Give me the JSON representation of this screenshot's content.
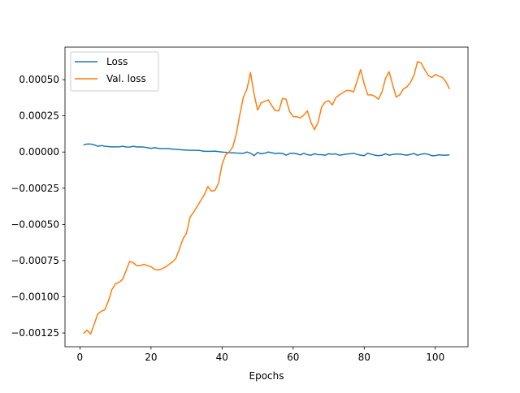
{
  "chart_data": {
    "type": "line",
    "title": "",
    "xlabel": "Epochs",
    "ylabel": "",
    "xlim": [
      -4.2,
      109.2
    ],
    "ylim": [
      -0.001345,
      0.000725
    ],
    "x_ticks": [
      0,
      20,
      40,
      60,
      80,
      100
    ],
    "x_tick_labels": [
      "0",
      "20",
      "40",
      "60",
      "80",
      "100"
    ],
    "y_ticks": [
      -0.00125,
      -0.001,
      -0.00075,
      -0.0005,
      -0.00025,
      0,
      0.00025,
      0.0005
    ],
    "y_tick_labels": [
      "−0.00125",
      "−0.00100",
      "−0.00075",
      "−0.00050",
      "−0.00025",
      "0.00000",
      "0.00025",
      "0.00050"
    ],
    "grid": false,
    "legend_position": "top-left",
    "x": [
      1,
      2,
      3,
      4,
      5,
      6,
      7,
      8,
      9,
      10,
      11,
      12,
      13,
      14,
      15,
      16,
      17,
      18,
      19,
      20,
      21,
      22,
      23,
      24,
      25,
      26,
      27,
      28,
      29,
      30,
      31,
      32,
      33,
      34,
      35,
      36,
      37,
      38,
      39,
      40,
      41,
      42,
      43,
      44,
      45,
      46,
      47,
      48,
      49,
      50,
      51,
      52,
      53,
      54,
      55,
      56,
      57,
      58,
      59,
      60,
      61,
      62,
      63,
      64,
      65,
      66,
      67,
      68,
      69,
      70,
      71,
      72,
      73,
      74,
      75,
      76,
      77,
      78,
      79,
      80,
      81,
      82,
      83,
      84,
      85,
      86,
      87,
      88,
      89,
      90,
      91,
      92,
      93,
      94,
      95,
      96,
      97,
      98,
      99,
      100,
      101,
      102,
      103,
      104
    ],
    "series": [
      {
        "name": "Loss",
        "color": "#1f77b4",
        "values": [
          5e-05,
          5.5e-05,
          5.5e-05,
          5e-05,
          4e-05,
          4.5e-05,
          4e-05,
          3.8e-05,
          3.6e-05,
          3.6e-05,
          3.6e-05,
          4e-05,
          3.5e-05,
          3.4e-05,
          4e-05,
          3.5e-05,
          3.6e-05,
          3.4e-05,
          3e-05,
          2.5e-05,
          3e-05,
          2.6e-05,
          2.4e-05,
          2.4e-05,
          2.4e-05,
          2e-05,
          1.9e-05,
          1.7e-05,
          1.5e-05,
          1.3e-05,
          1.2e-05,
          1.2e-05,
          1.2e-05,
          1e-05,
          5e-06,
          5e-06,
          5e-06,
          6e-06,
          3e-06,
          0.0,
          -2e-06,
          -4e-06,
          -5e-06,
          -7e-06,
          -8e-06,
          -9e-06,
          0.0,
          -8e-06,
          -2.5e-05,
          -3e-06,
          -1.2e-05,
          -8e-06,
          0.0,
          -5e-06,
          -1e-05,
          -8e-06,
          -9e-06,
          -2.2e-05,
          -1e-05,
          -8e-06,
          -1.2e-05,
          -2e-05,
          -9e-06,
          -1.8e-05,
          -2.2e-05,
          -1.2e-05,
          -1.8e-05,
          -1.8e-05,
          -2.2e-05,
          -1.2e-05,
          -1.5e-05,
          -1.3e-05,
          -2.2e-05,
          -1.8e-05,
          -1.4e-05,
          -1.2e-05,
          -9e-06,
          -1.6e-05,
          -2.2e-05,
          -2.5e-05,
          -8e-06,
          -1.5e-05,
          -2.2e-05,
          -2.5e-05,
          -2.2e-05,
          -1.2e-05,
          -2.2e-05,
          -1.7e-05,
          -1.4e-05,
          -1.4e-05,
          -1.8e-05,
          -2.2e-05,
          -1.6e-05,
          -1e-05,
          -2.2e-05,
          -1.5e-05,
          -1.1e-05,
          -1.6e-05,
          -2.5e-05,
          -2.5e-05,
          -1.9e-05,
          -2.2e-05,
          -2.2e-05,
          -2e-05
        ]
      },
      {
        "name": "Val. loss",
        "color": "#ff7f0e",
        "values": [
          -0.001255,
          -0.00123,
          -0.001258,
          -0.00119,
          -0.00112,
          -0.0011,
          -0.00109,
          -0.00103,
          -0.00095,
          -0.00091,
          -0.0009,
          -0.00088,
          -0.00082,
          -0.000755,
          -0.000765,
          -0.000785,
          -0.000785,
          -0.000775,
          -0.000785,
          -0.000792,
          -0.00081,
          -0.000815,
          -0.000808,
          -0.000795,
          -0.000778,
          -0.00076,
          -0.000735,
          -0.00067,
          -0.0006,
          -0.00056,
          -0.00045,
          -0.000415,
          -0.000375,
          -0.000335,
          -0.000295,
          -0.000238,
          -0.00027,
          -0.000265,
          -0.000215,
          -8.5e-05,
          -2e-05,
          0.0,
          3.5e-05,
          0.000125,
          0.00026,
          0.00038,
          0.000435,
          0.00055,
          0.0004,
          0.00029,
          0.00034,
          0.00035,
          0.00036,
          0.00032,
          0.000285,
          0.000285,
          0.00037,
          0.000365,
          0.00028,
          0.000245,
          0.000245,
          0.000235,
          0.000255,
          0.000285,
          0.000205,
          0.000155,
          0.000205,
          0.00031,
          0.000345,
          0.000355,
          0.000325,
          0.000375,
          0.000395,
          0.00041,
          0.000425,
          0.000425,
          0.000415,
          0.00049,
          0.00057,
          0.00047,
          0.000395,
          0.000395,
          0.000385,
          0.000365,
          0.000415,
          0.00051,
          0.000555,
          0.000465,
          0.00038,
          0.000395,
          0.000435,
          0.00045,
          0.00048,
          0.00053,
          0.000625,
          0.000615,
          0.00057,
          0.00053,
          0.000515,
          0.000535,
          0.000525,
          0.000515,
          0.000485,
          0.000435
        ]
      }
    ]
  }
}
